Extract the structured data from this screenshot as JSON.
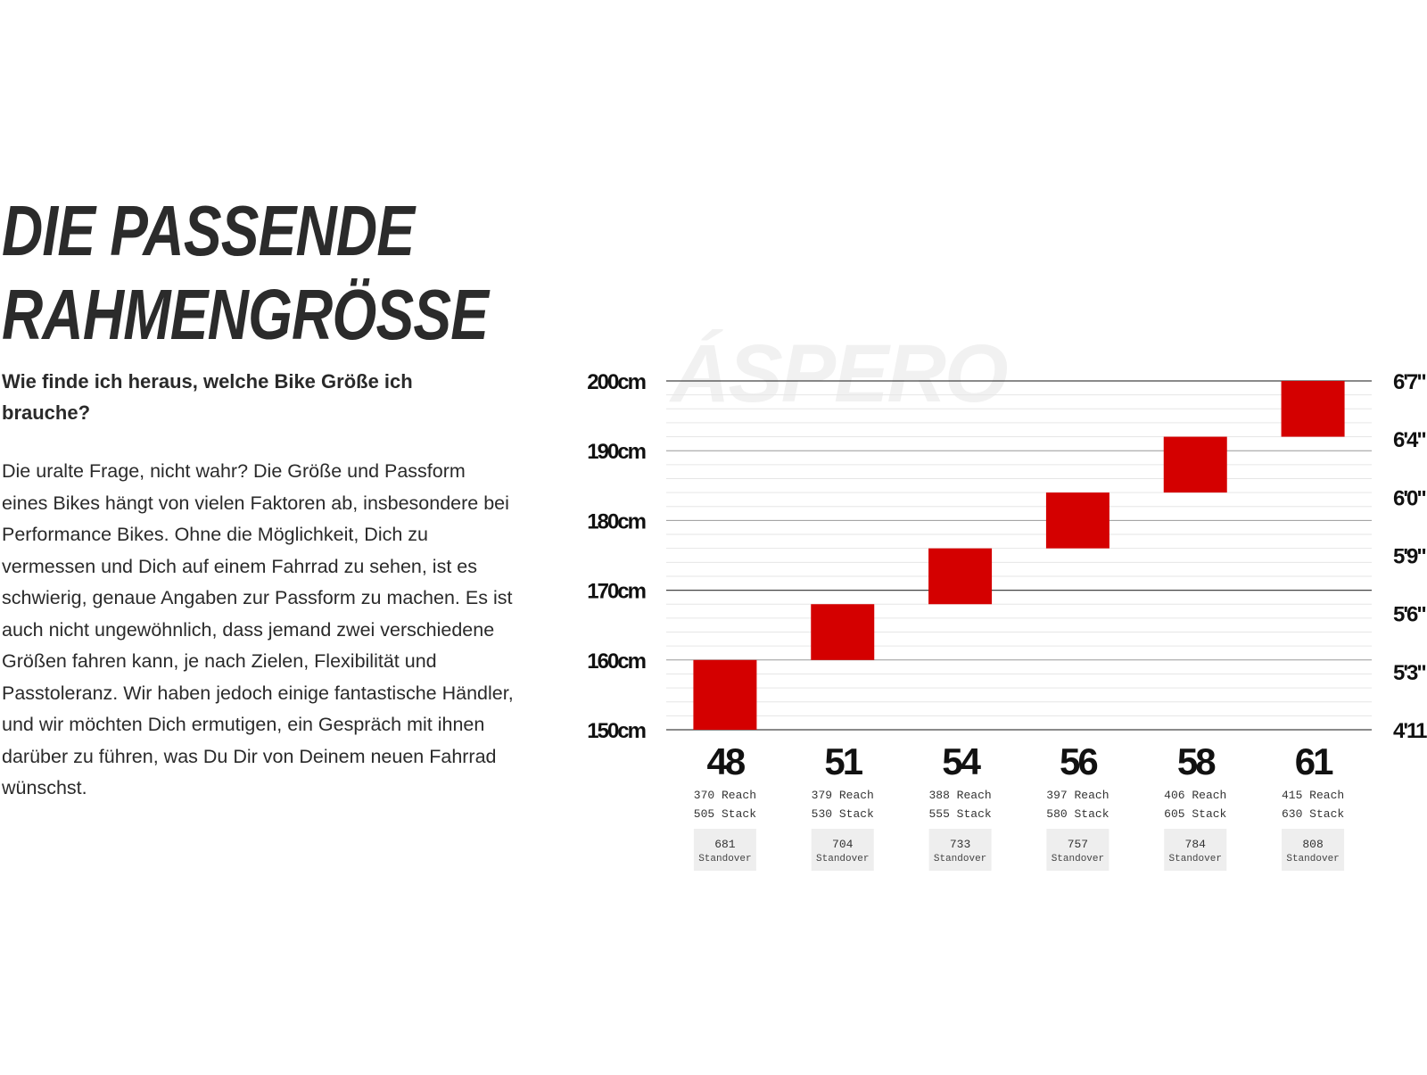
{
  "heading": {
    "line1": "DIE PASSENDE",
    "line2": "RAHMENGRÖSSE"
  },
  "question": "Wie finde ich heraus, welche Bike Größe ich brauche?",
  "body": "Die uralte Frage, nicht wahr? Die Größe und Passform eines Bikes hängt von vielen Faktoren ab, insbesondere bei Performance Bikes. Ohne die Möglichkeit, Dich zu vermessen und Dich auf einem Fahrrad zu sehen, ist es schwierig, genaue Angaben zur Passform zu machen. Es ist auch nicht ungewöhnlich, dass jemand zwei verschiedene Größen fahren kann, je nach Zielen, Flexibilität und Passtoleranz. Wir haben jedoch einige fantastische Händler, und wir möchten Dich ermutigen, ein Gespräch mit ihnen darüber zu führen, was Du Dir von Deinem neuen Fahrrad wünschst.",
  "colors": {
    "bar": "#d40000",
    "grid": "#e6e6e6",
    "axis": "#555555",
    "badge": "#eeeeee"
  },
  "chart_data": {
    "type": "bar",
    "title": "ÁSPERO",
    "ylim": [
      150,
      200
    ],
    "y_ticks_cm": [
      "150cm",
      "160cm",
      "170cm",
      "180cm",
      "190cm",
      "200cm"
    ],
    "y_ticks_ft": [
      "4'11\"",
      "5'3\"",
      "5'6\"",
      "5'9\"",
      "6'0\"",
      "6'4\"",
      "6'7\""
    ],
    "grid": true,
    "reach_label": "Reach",
    "stack_label": "Stack",
    "standover_label": "Standover",
    "sizes": [
      {
        "size": "48",
        "range": [
          150,
          160
        ],
        "reach": "370",
        "stack": "505",
        "standover": "681"
      },
      {
        "size": "51",
        "range": [
          160,
          168
        ],
        "reach": "379",
        "stack": "530",
        "standover": "704"
      },
      {
        "size": "54",
        "range": [
          168,
          176
        ],
        "reach": "388",
        "stack": "555",
        "standover": "733"
      },
      {
        "size": "56",
        "range": [
          176,
          184
        ],
        "reach": "397",
        "stack": "580",
        "standover": "757"
      },
      {
        "size": "58",
        "range": [
          184,
          192
        ],
        "reach": "406",
        "stack": "605",
        "standover": "784"
      },
      {
        "size": "61",
        "range": [
          192,
          200
        ],
        "reach": "415",
        "stack": "630",
        "standover": "808"
      }
    ]
  }
}
